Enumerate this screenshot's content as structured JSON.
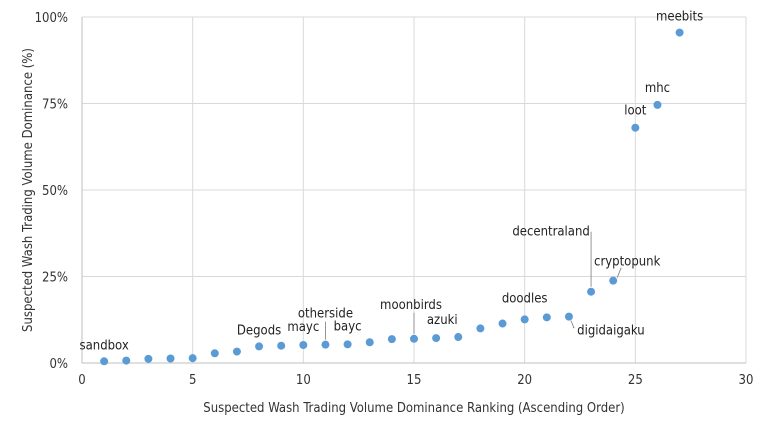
{
  "chart_data": {
    "type": "scatter",
    "title": "",
    "xlabel": "Suspected Wash Trading Volume Dominance Ranking (Ascending Order)",
    "ylabel": "Suspected Wash Trading Volume Dominance (%)",
    "xlim": [
      0,
      30
    ],
    "ylim": [
      0,
      100
    ],
    "x_ticks": [
      "0",
      "5",
      "10",
      "15",
      "20",
      "25",
      "30"
    ],
    "y_ticks": [
      "0%",
      "25%",
      "50%",
      "75%",
      "100%"
    ],
    "grid": "vertical and horizontal",
    "legend": "none",
    "colors": {
      "marker": "#5b9bd5",
      "grid": "#d9d9d9"
    },
    "points": [
      {
        "x": 1,
        "y": 0.5,
        "label": "sandbox"
      },
      {
        "x": 2,
        "y": 0.7
      },
      {
        "x": 3,
        "y": 1.2
      },
      {
        "x": 4,
        "y": 1.3
      },
      {
        "x": 5,
        "y": 1.4
      },
      {
        "x": 6,
        "y": 2.8
      },
      {
        "x": 7,
        "y": 3.3
      },
      {
        "x": 8,
        "y": 4.8,
        "label": "Degods"
      },
      {
        "x": 9,
        "y": 5.0
      },
      {
        "x": 10,
        "y": 5.2,
        "label": "mayc"
      },
      {
        "x": 11,
        "y": 5.3,
        "label": "otherside"
      },
      {
        "x": 12,
        "y": 5.4,
        "label": "bayc"
      },
      {
        "x": 13,
        "y": 6.0
      },
      {
        "x": 14,
        "y": 6.9
      },
      {
        "x": 15,
        "y": 7.0,
        "label": "moonbirds"
      },
      {
        "x": 16,
        "y": 7.2
      },
      {
        "x": 17,
        "y": 7.5,
        "label": "azuki"
      },
      {
        "x": 18,
        "y": 10.0
      },
      {
        "x": 19,
        "y": 11.4
      },
      {
        "x": 20,
        "y": 12.6,
        "label": "doodles"
      },
      {
        "x": 21,
        "y": 13.2
      },
      {
        "x": 22,
        "y": 13.4,
        "label": "digidaigaku"
      },
      {
        "x": 23,
        "y": 20.6,
        "label": "decentraland"
      },
      {
        "x": 24,
        "y": 23.8,
        "label": "cryptopunk"
      },
      {
        "x": 25,
        "y": 68.0,
        "label": "loot"
      },
      {
        "x": 26,
        "y": 74.6,
        "label": "mhc"
      },
      {
        "x": 27,
        "y": 95.5,
        "label": "meebits"
      }
    ]
  }
}
